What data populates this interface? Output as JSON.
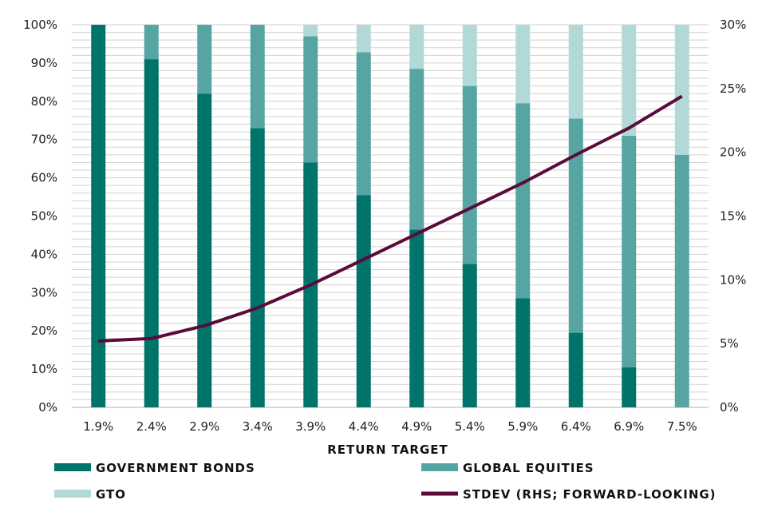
{
  "chart_data": {
    "type": "bar",
    "stacked": true,
    "xlabel": "RETURN TARGET",
    "categories": [
      "1.9%",
      "2.4%",
      "2.9%",
      "3.4%",
      "3.9%",
      "4.4%",
      "4.9%",
      "5.4%",
      "5.9%",
      "6.4%",
      "6.9%",
      "7.5%"
    ],
    "y_left": {
      "lim": [
        0,
        100
      ],
      "ticks": [
        "0%",
        "10%",
        "20%",
        "30%",
        "40%",
        "50%",
        "60%",
        "70%",
        "80%",
        "90%",
        "100%"
      ]
    },
    "y_right": {
      "lim": [
        0,
        30
      ],
      "ticks": [
        "0%",
        "5%",
        "10%",
        "15%",
        "20%",
        "25%",
        "30%"
      ]
    },
    "grid": "horizontal",
    "legend_position": "bottom",
    "series": [
      {
        "name": "GOVERNMENT BONDS",
        "axis": "left",
        "kind": "bar",
        "color": "#00736a",
        "values": [
          100,
          91,
          82,
          73,
          64,
          55.5,
          46.5,
          37.5,
          28.5,
          19.5,
          10.5,
          0
        ]
      },
      {
        "name": "GLOBAL EQUITIES",
        "axis": "left",
        "kind": "bar",
        "color": "#57a5a3",
        "values": [
          0,
          9,
          18,
          27,
          33,
          37.3,
          42,
          46.5,
          51,
          56,
          60.5,
          66
        ]
      },
      {
        "name": "GTO",
        "axis": "left",
        "kind": "bar",
        "color": "#b2d8d8",
        "values": [
          0,
          0,
          0,
          0,
          3,
          7.2,
          11.5,
          16,
          20.5,
          24.5,
          29,
          34
        ]
      },
      {
        "name": "STDEV (RHS; FORWARD-LOOKING)",
        "axis": "right",
        "kind": "line",
        "color": "#5a0b3a",
        "values": [
          5.2,
          5.4,
          6.4,
          7.8,
          9.6,
          11.6,
          13.6,
          15.6,
          17.6,
          19.8,
          21.9,
          24.4
        ]
      }
    ]
  }
}
